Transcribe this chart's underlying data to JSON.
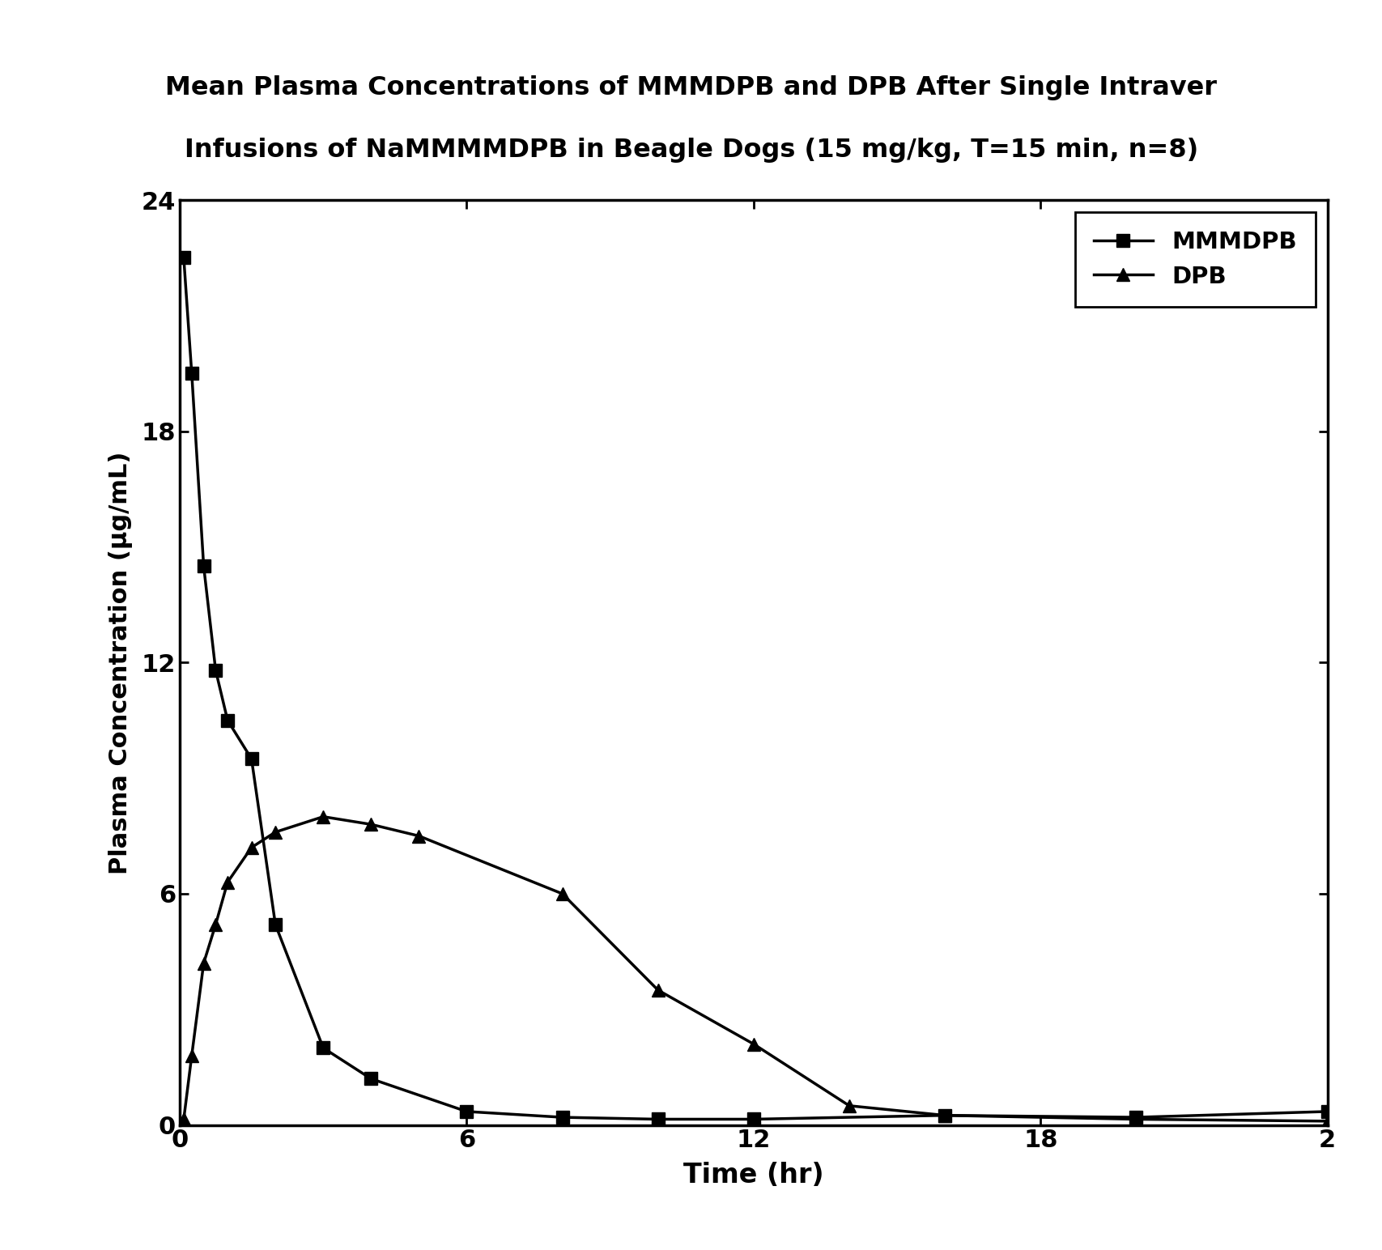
{
  "title_line1": "Mean Plasma Concentrations of MMMDPB and DPB After Single Intraver",
  "title_line2": "Infusions of NaMMMMDPB in Beagle Dogs (15 mg/kg, T=15 min, n=8)",
  "xlabel": "Time (hr)",
  "ylabel": "Plasma Concentration (μg/mL)",
  "xlim": [
    0,
    24
  ],
  "ylim": [
    0,
    24
  ],
  "yticks": [
    0,
    6,
    12,
    18,
    24
  ],
  "mmmdpb_x": [
    0.083,
    0.25,
    0.5,
    0.75,
    1.0,
    1.5,
    2.0,
    3.0,
    4.0,
    6.0,
    8.0,
    10.0,
    12.0,
    16.0,
    20.0,
    24.0
  ],
  "mmmdpb_y": [
    22.5,
    19.5,
    14.5,
    11.8,
    10.5,
    9.5,
    5.2,
    2.0,
    1.2,
    0.35,
    0.2,
    0.15,
    0.15,
    0.25,
    0.2,
    0.35
  ],
  "dpb_x": [
    0.083,
    0.25,
    0.5,
    0.75,
    1.0,
    1.5,
    2.0,
    3.0,
    4.0,
    5.0,
    8.0,
    10.0,
    12.0,
    14.0,
    16.0,
    20.0,
    24.0
  ],
  "dpb_y": [
    0.15,
    1.8,
    4.2,
    5.2,
    6.3,
    7.2,
    7.6,
    8.0,
    7.8,
    7.5,
    6.0,
    3.5,
    2.1,
    0.5,
    0.25,
    0.15,
    0.1
  ],
  "line_color": "#000000",
  "background_color": "#ffffff",
  "legend_mmmdpb": "MMMDPB",
  "legend_dpb": "DPB",
  "title_fontsize": 23,
  "tick_fontsize": 22,
  "label_fontsize": 24,
  "legend_fontsize": 21
}
